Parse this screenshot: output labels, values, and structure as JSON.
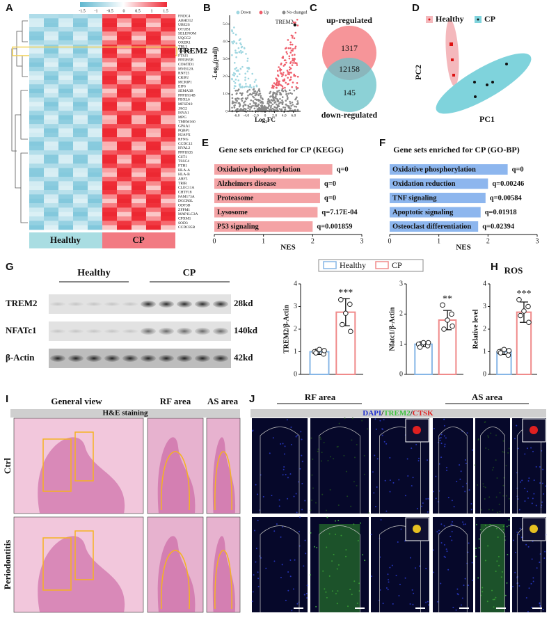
{
  "panel_labels": [
    "A",
    "B",
    "C",
    "D",
    "E",
    "F",
    "G",
    "H",
    "I",
    "J"
  ],
  "heatmap": {
    "color_scale_ticks": [
      -1.5,
      -1,
      -0.5,
      0,
      0.5,
      1,
      1.5
    ],
    "genes": [
      "FNDC4",
      "ABHD12",
      "UBE2S",
      "OTUB1",
      "SELENOM",
      "UQCC2",
      "OXER1",
      "TBL3",
      "TREM2",
      "FTSJ1",
      "PPP2R5B",
      "COMTD1",
      "MVB12A",
      "RNF25",
      "CRIP2",
      "MCRIP1",
      "EIF6",
      "SEMA3B",
      "PPP1R14B",
      "FBXL6",
      "MFSD10",
      "JAG2",
      "ISNA1",
      "MPG",
      "TMEM160",
      "GPAA1",
      "PQBP1",
      "H2AFX",
      "RFNG",
      "CCDC12",
      "HYAL2",
      "PPP1R35",
      "CST1",
      "TSSC4",
      "FTH1",
      "HLA-A",
      "HLA-B",
      "ARF5",
      "TRIR",
      "CLEC11A",
      "CHTF18",
      "FAM173A",
      "DGCR6L",
      "ODF3B",
      "ZFPM1",
      "MAP1LC3A",
      "CPXM1",
      "SOD3",
      "CCDC85B"
    ],
    "highlight": "TREM2",
    "groups": [
      "Healthy",
      "CP"
    ],
    "group_colors": [
      "#a9dde2",
      "#f27a82"
    ]
  },
  "volcano": {
    "legend": [
      "Down",
      "Up",
      "No-changed"
    ],
    "colors": [
      "#9fd6e0",
      "#ef5f6c",
      "#8a8a8a"
    ],
    "annotation": "TREM2",
    "xlabel": "Log₂FC",
    "ylabel": "-Log₁₀(padj)",
    "xlim": [
      -7.5,
      7.5
    ],
    "ylim": [
      0,
      5.5
    ],
    "xticks": [
      {
        "value": -6,
        "label": "-6.0"
      },
      {
        "value": -4,
        "label": "-4.0"
      },
      {
        "value": -2,
        "label": "-2.0"
      },
      0,
      {
        "value": 2,
        "label": "2.0"
      },
      {
        "value": 4,
        "label": "4.0"
      },
      {
        "value": 6,
        "label": "6.0"
      }
    ],
    "yticks": [
      0,
      {
        "value": 1,
        "label": "1.0"
      },
      {
        "value": 2,
        "label": "2.0"
      },
      {
        "value": 3,
        "label": "3.0"
      },
      {
        "value": 4,
        "label": "4.0"
      },
      {
        "value": 5,
        "label": "5.0"
      }
    ]
  },
  "venn": {
    "top_label": "up-regulated",
    "bottom_label": "down-regulated",
    "counts": [
      1317,
      12158,
      145
    ]
  },
  "pca": {
    "legend": [
      "Healthy",
      "CP"
    ],
    "colors": [
      "#f4b8bc",
      "#7fd3dc"
    ],
    "xlabel": "PC1",
    "ylabel": "PC2"
  },
  "chart_data": [
    {
      "type": "hbar",
      "title": "Gene sets enriched for CP (KEGG)",
      "categories": [
        "Oxidative phosphorylation",
        "Alzheimers disease",
        "Proteasome",
        "Lysosome",
        "P53 signaling"
      ],
      "values": [
        2.4,
        2.15,
        2.15,
        2.1,
        2.0
      ],
      "annotations": [
        "q=0",
        "q=0",
        "q=0",
        "q=7.17E-04",
        "q=0.001859"
      ],
      "color": "#f4a3a5",
      "xlabel": "NES",
      "xlim": [
        0,
        3
      ],
      "xticks": [
        0,
        1,
        2,
        3
      ]
    },
    {
      "type": "hbar",
      "title": "Gene sets enriched for CP (GO-BP)",
      "categories": [
        "Oxidative phosphorylation",
        "Oxidation reduction",
        "TNF signaling",
        "Apoptotic signaling",
        "Osteoclast differentiation"
      ],
      "values": [
        2.4,
        2.0,
        1.95,
        1.85,
        1.8
      ],
      "annotations": [
        "q=0",
        "q=0.00246",
        "q=0.00584",
        "q=0.01918",
        "q=0.02394"
      ],
      "color": "#8db6ee",
      "xlabel": "NES",
      "xlim": [
        0,
        3
      ],
      "xticks": [
        0,
        1,
        2,
        3
      ]
    },
    {
      "type": "vbar",
      "ylabel": "TREM2/β-Actin",
      "ylim": [
        0,
        4
      ],
      "yticks": [
        0,
        1,
        2,
        3,
        4
      ],
      "significance": "***",
      "series": [
        {
          "name": "Healthy",
          "color": "#86b6e6",
          "values": [
            1.0
          ],
          "errors": [
            0.12
          ],
          "points": [
            1.0,
            0.9,
            1.1,
            0.95,
            1.05
          ]
        },
        {
          "name": "CP",
          "color": "#f08a8a",
          "values": [
            2.75
          ],
          "errors": [
            0.6
          ],
          "points": [
            3.3,
            3.1,
            2.7,
            2.2,
            1.9
          ]
        }
      ]
    },
    {
      "type": "vbar",
      "ylabel": "Nfatc1/β-Actin",
      "ylim": [
        0,
        3
      ],
      "yticks": [
        0,
        1,
        2,
        3
      ],
      "significance": "**",
      "series": [
        {
          "name": "Healthy",
          "color": "#86b6e6",
          "values": [
            1.0
          ],
          "errors": [
            0.08
          ],
          "points": [
            1.0,
            0.95,
            1.05,
            0.9,
            1.05
          ]
        },
        {
          "name": "CP",
          "color": "#f08a8a",
          "values": [
            1.8
          ],
          "errors": [
            0.32
          ],
          "points": [
            2.3,
            2.0,
            1.8,
            1.5,
            1.6
          ]
        }
      ]
    },
    {
      "type": "vbar",
      "title": "ROS",
      "ylabel": "Relative level",
      "ylim": [
        0,
        4
      ],
      "yticks": [
        0,
        1,
        2,
        3,
        4
      ],
      "significance": "***",
      "series": [
        {
          "name": "Healthy",
          "color": "#86b6e6",
          "values": [
            1.0
          ],
          "errors": [
            0.12
          ],
          "points": [
            1.0,
            0.85,
            1.1,
            0.95,
            1.05
          ]
        },
        {
          "name": "CP",
          "color": "#f08a8a",
          "values": [
            2.75
          ],
          "errors": [
            0.45
          ],
          "points": [
            3.3,
            3.0,
            2.8,
            2.6,
            2.3
          ]
        }
      ]
    }
  ],
  "blot": {
    "groups": [
      "Healthy",
      "CP"
    ],
    "rows": [
      "TREM2",
      "NFATc1",
      "β-Actin"
    ],
    "sizes": [
      "28kd",
      "140kd",
      "42kd"
    ]
  },
  "histology": {
    "headers": [
      "General view",
      "RF area",
      "AS area"
    ],
    "stain": "H&E staining",
    "rows": [
      "Ctrl",
      "Periodontitis"
    ]
  },
  "fluorescence": {
    "headers": [
      "RF area",
      "AS area"
    ],
    "stain_parts": [
      "DAPI",
      "/",
      "TREM2",
      "/",
      "CTSK"
    ],
    "stain_colors": [
      "#1f2fd0",
      "#111",
      "#3cc23c",
      "#111",
      "#e02020"
    ]
  }
}
